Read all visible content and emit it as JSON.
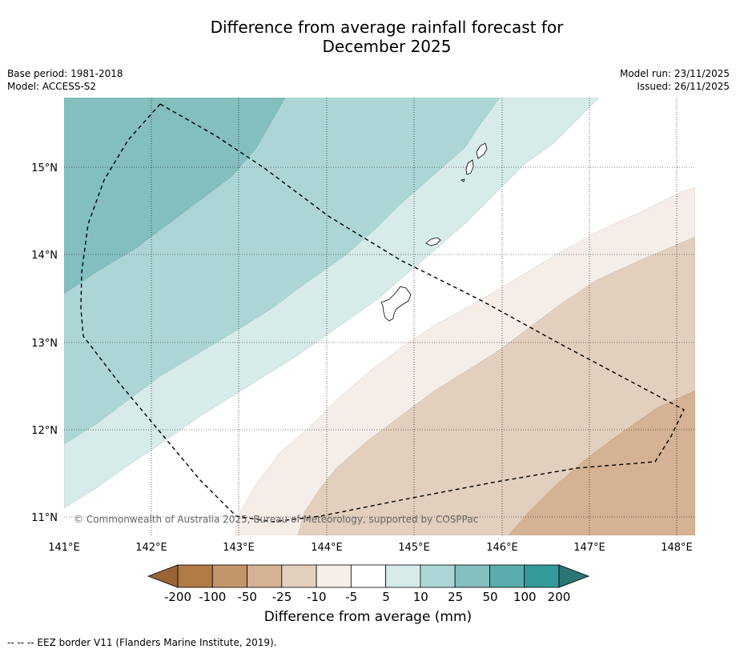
{
  "header": {
    "title_line1": "Difference from average rainfall forecast for",
    "title_line2": "December 2025",
    "base_period": "Base period: 1981-2018",
    "model": "Model: ACCESS-S2",
    "model_run": "Model run: 23/11/2025",
    "issued": "Issued: 26/11/2025"
  },
  "map": {
    "lat_labels": [
      "15°N",
      "14°N",
      "13°N",
      "12°N",
      "11°N"
    ],
    "lon_labels": [
      "141°E",
      "142°E",
      "143°E",
      "144°E",
      "145°E",
      "146°E",
      "147°E",
      "148°E"
    ],
    "copyright": "© Commonwealth of Australia 2025, Bureau of Meteorology, supported by COSPPac"
  },
  "legend": {
    "tick_labels": [
      "-200",
      "-100",
      "-50",
      "-25",
      "-10",
      "-5",
      "5",
      "10",
      "25",
      "50",
      "100",
      "200"
    ],
    "title": "Difference from average (mm)",
    "colors": [
      "#9a6436",
      "#b07a45",
      "#c2956a",
      "#d4b293",
      "#e3cfbd",
      "#f4ede8",
      "#ffffff",
      "#d6ebea",
      "#acd6d5",
      "#83bfbf",
      "#5aacad",
      "#34999a",
      "#2b7576"
    ]
  },
  "footer": {
    "eez_note": "--  --  -- EEZ border V11 (Flanders Marine Institute, 2019)."
  }
}
